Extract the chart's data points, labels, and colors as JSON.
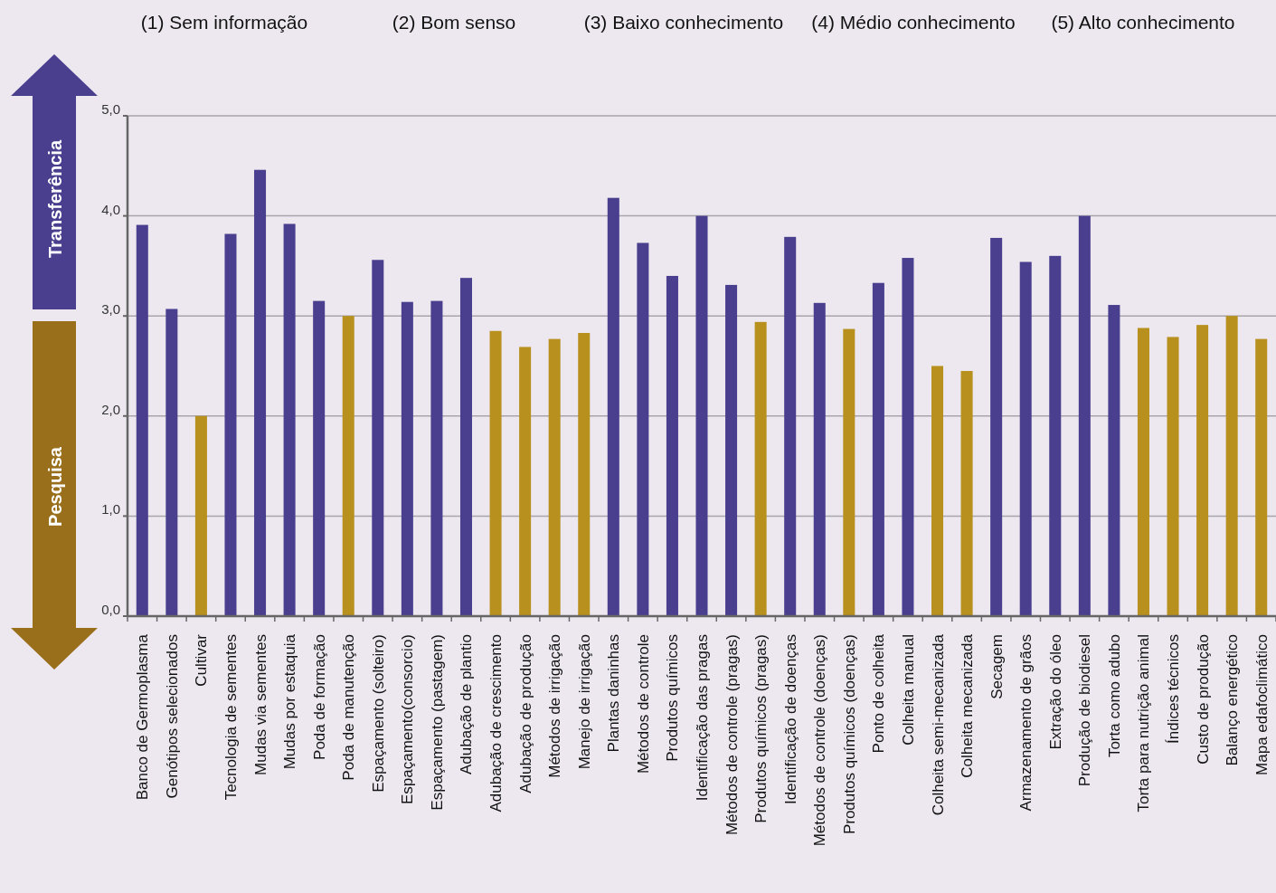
{
  "chart_data": {
    "type": "bar",
    "categories": [
      "Banco de Germoplasma",
      "Genótipos selecionados",
      "Cultivar",
      "Tecnologia de sementes",
      "Mudas via sementes",
      "Mudas por estaquia",
      "Poda de formação",
      "Poda de manutenção",
      "Espaçamento (solteiro)",
      "Espaçamento(consorcio)",
      "Espaçamento (pastagem)",
      "Adubação de plantio",
      "Adubação de crescimento",
      "Adubação de produção",
      "Métodos de irrigação",
      "Manejo de irrigação",
      "Plantas daninhas",
      "Métodos de controle",
      "Produtos químicos",
      "Identificação das pragas",
      "Métodos de controle (pragas)",
      "Produtos químicos (pragas)",
      "Identificação de doenças",
      "Métodos de controle (doenças)",
      "Produtos químicos (doenças)",
      "Ponto de colheita",
      "Colheita manual",
      "Colheita semi-mecanizada",
      "Colheita mecanizada",
      "Secagem",
      "Armazenamento de grãos",
      "Extração do óleo",
      "Produção de biodiesel",
      "Torta como adubo",
      "Torta para nutrição animal",
      "Índices técnicos",
      "Custo de produção",
      "Balanço energético",
      "Mapa edafoclimático"
    ],
    "values": [
      3.91,
      3.07,
      2.0,
      3.82,
      4.46,
      3.92,
      3.15,
      3.0,
      3.56,
      3.14,
      3.15,
      3.38,
      2.85,
      2.69,
      2.77,
      2.83,
      4.18,
      3.73,
      3.4,
      4.0,
      3.31,
      2.94,
      3.79,
      3.13,
      2.87,
      3.33,
      3.58,
      2.5,
      2.45,
      3.78,
      3.54,
      3.6,
      4.0,
      3.11,
      2.88,
      2.79,
      2.91,
      3.0,
      2.77
    ],
    "colors": [
      "#4a3f8f",
      "#4a3f8f",
      "#b8901e",
      "#4a3f8f",
      "#4a3f8f",
      "#4a3f8f",
      "#4a3f8f",
      "#b8901e",
      "#4a3f8f",
      "#4a3f8f",
      "#4a3f8f",
      "#4a3f8f",
      "#b8901e",
      "#b8901e",
      "#b8901e",
      "#b8901e",
      "#4a3f8f",
      "#4a3f8f",
      "#4a3f8f",
      "#4a3f8f",
      "#4a3f8f",
      "#b8901e",
      "#4a3f8f",
      "#4a3f8f",
      "#b8901e",
      "#4a3f8f",
      "#4a3f8f",
      "#b8901e",
      "#b8901e",
      "#4a3f8f",
      "#4a3f8f",
      "#4a3f8f",
      "#4a3f8f",
      "#4a3f8f",
      "#b8901e",
      "#b8901e",
      "#b8901e",
      "#b8901e",
      "#b8901e"
    ],
    "ylim": [
      0,
      5
    ],
    "yticks": [
      {
        "value": 0,
        "label": "0,0"
      },
      {
        "value": 1,
        "label": "1,0"
      },
      {
        "value": 2,
        "label": "2,0"
      },
      {
        "value": 3,
        "label": "3,0"
      },
      {
        "value": 4,
        "label": "4,0"
      },
      {
        "value": 5,
        "label": "5,0"
      }
    ],
    "grid": "y",
    "annotations": [
      "(1) Sem informação",
      "(2) Bom senso",
      "(3) Baixo conhecimento",
      "(4) Médio conhecimento",
      "(5) Alto conhecimento",
      "Transferência",
      "Pesquisa"
    ]
  }
}
